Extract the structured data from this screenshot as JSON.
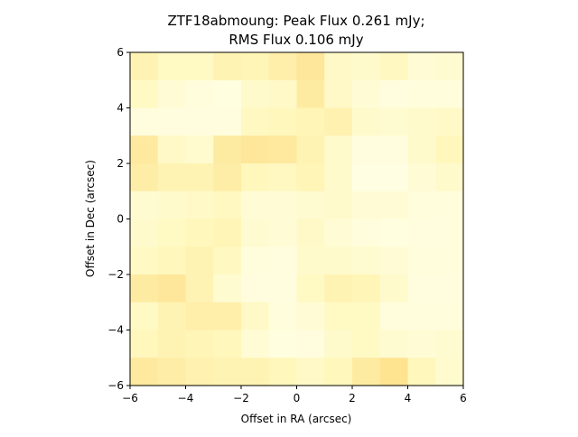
{
  "chart_data": {
    "type": "heatmap",
    "title_line1": "ZTF18abmoung: Peak Flux 0.261 mJy;",
    "title_line2": "RMS Flux 0.106 mJy",
    "xlabel": "Offset in RA (arcsec)",
    "ylabel": "Offset in Dec (arcsec)",
    "xlim": [
      -6,
      6
    ],
    "ylim": [
      -6,
      6
    ],
    "xticks": [
      "−6",
      "−4",
      "−2",
      "0",
      "2",
      "4",
      "6"
    ],
    "yticks": [
      "−6",
      "−4",
      "−2",
      "0",
      "2",
      "4",
      "6"
    ],
    "colormap": "YlOrBr",
    "grid_rows_top_to_bottom": [
      [
        0.3,
        0.2,
        0.2,
        0.3,
        0.28,
        0.35,
        0.45,
        0.18,
        0.15,
        0.22,
        0.1,
        0.12
      ],
      [
        0.2,
        0.1,
        0.06,
        0.04,
        0.15,
        0.18,
        0.4,
        0.18,
        0.1,
        0.05,
        0.06,
        0.06
      ],
      [
        0.05,
        0.05,
        0.05,
        0.05,
        0.22,
        0.25,
        0.28,
        0.32,
        0.15,
        0.12,
        0.16,
        0.18
      ],
      [
        0.42,
        0.18,
        0.14,
        0.4,
        0.45,
        0.42,
        0.3,
        0.15,
        0.05,
        0.05,
        0.15,
        0.25
      ],
      [
        0.38,
        0.3,
        0.3,
        0.38,
        0.25,
        0.22,
        0.28,
        0.15,
        0.02,
        0.02,
        0.1,
        0.16
      ],
      [
        0.12,
        0.15,
        0.18,
        0.22,
        0.1,
        0.1,
        0.13,
        0.15,
        0.1,
        0.1,
        0.06,
        0.06
      ],
      [
        0.15,
        0.2,
        0.25,
        0.28,
        0.12,
        0.1,
        0.18,
        0.1,
        0.06,
        0.04,
        0.05,
        0.06
      ],
      [
        0.2,
        0.25,
        0.3,
        0.22,
        0.06,
        0.05,
        0.15,
        0.15,
        0.13,
        0.1,
        0.06,
        0.06
      ],
      [
        0.4,
        0.45,
        0.3,
        0.12,
        0.05,
        0.05,
        0.2,
        0.3,
        0.28,
        0.15,
        0.05,
        0.05
      ],
      [
        0.2,
        0.3,
        0.35,
        0.35,
        0.18,
        0.06,
        0.1,
        0.2,
        0.2,
        0.06,
        0.06,
        0.06
      ],
      [
        0.25,
        0.3,
        0.28,
        0.25,
        0.1,
        0.04,
        0.05,
        0.15,
        0.2,
        0.12,
        0.1,
        0.12
      ],
      [
        0.42,
        0.38,
        0.32,
        0.3,
        0.3,
        0.25,
        0.18,
        0.25,
        0.4,
        0.5,
        0.25,
        0.14
      ]
    ]
  }
}
